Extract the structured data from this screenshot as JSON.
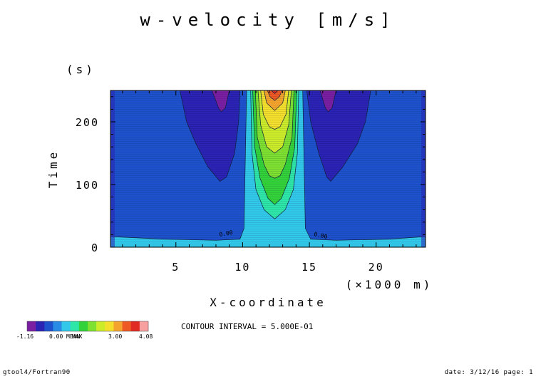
{
  "chart_data": {
    "type": "heatmap",
    "title": "w-velocity [m/s]",
    "xlabel": "X-coordinate",
    "xunit": "(×1000 m)",
    "ylabel": "Time",
    "yunit": "(s)",
    "xlim": [
      0.1,
      23.7
    ],
    "ylim": [
      0,
      250
    ],
    "xticks": [
      5,
      10,
      15,
      20
    ],
    "yticks": [
      0,
      100,
      200
    ],
    "contour_levels": [
      -1.0,
      -0.5,
      0.0,
      0.5,
      1.0,
      1.5,
      2.0,
      2.5,
      3.0,
      3.5,
      4.0
    ],
    "colorbar": {
      "colors": [
        "#7a1fa2",
        "#2a23b4",
        "#1e52cc",
        "#2a8be6",
        "#32c8ea",
        "#2ee6a8",
        "#34d23a",
        "#7ee030",
        "#ccec2a",
        "#f4e02c",
        "#f4a42c",
        "#ee5a24",
        "#e02a24",
        "#f8a0a0"
      ],
      "tick_labels": [
        "-1.16",
        "0.00",
        "MAX",
        "3.00",
        "4.08"
      ],
      "overlap_label": "MEAN",
      "min_label": "-1.16",
      "max_label": "4.08"
    },
    "contour_labels": [
      "0.00",
      "0.00"
    ],
    "contour_interval_text": "CONTOUR INTERVAL = 5.000E-01"
  },
  "footer": {
    "left": "gtool4/Fortran90",
    "right": "date: 3/12/16 page: 1"
  }
}
